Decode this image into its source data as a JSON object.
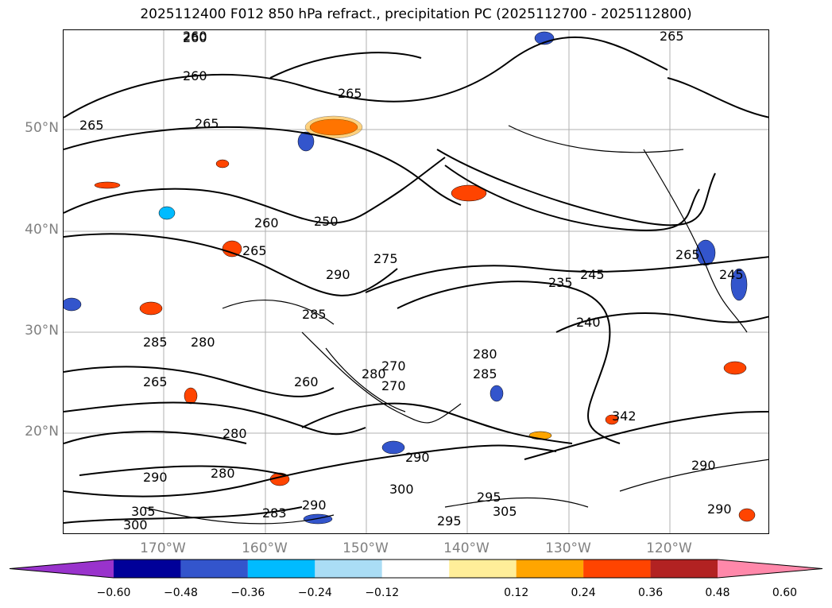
{
  "title": "2025112400 F012 850 hPa refract., precipitation PC (2025112700 - 2025112800)",
  "map": {
    "lat_labels": [
      "50°N",
      "40°N",
      "30°N",
      "20°N"
    ],
    "lon_labels": [
      "170°W",
      "160°W",
      "150°W",
      "140°W",
      "130°W",
      "120°W"
    ],
    "contour_labels": [
      "260",
      "260",
      "260",
      "265",
      "265",
      "265",
      "265",
      "250",
      "260",
      "265",
      "275",
      "290",
      "285",
      "280",
      "285",
      "270",
      "280",
      "240",
      "235",
      "245",
      "280",
      "285",
      "260",
      "270",
      "265",
      "280",
      "290",
      "280",
      "290",
      "290",
      "305",
      "300",
      "295",
      "305",
      "283",
      "290",
      "295",
      "300",
      "342",
      "290",
      "265",
      "245"
    ]
  },
  "colorbar": {
    "colors": [
      "#9933cc",
      "#000099",
      "#3355cc",
      "#00bbff",
      "#aaddf5",
      "#ffffff",
      "#ffee99",
      "#ffa500",
      "#ff4400",
      "#b22222",
      "#ff88aa"
    ],
    "ticks": [
      "−0.60",
      "−0.48",
      "−0.36",
      "−0.24",
      "−0.12",
      "0.12",
      "0.24",
      "0.36",
      "0.48",
      "0.60"
    ]
  }
}
